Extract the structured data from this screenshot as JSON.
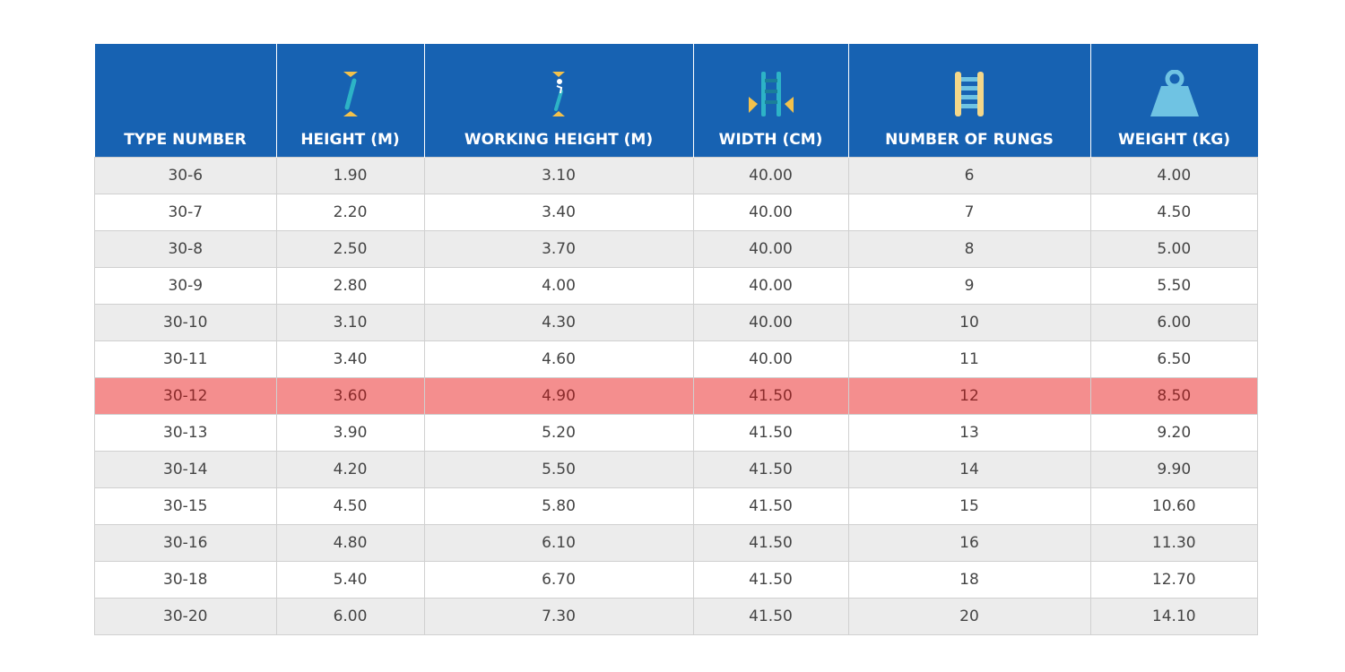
{
  "table": {
    "headers": [
      "TYPE NUMBER",
      "HEIGHT (M)",
      "WORKING HEIGHT (M)",
      "WIDTH (CM)",
      "NUMBER OF RUNGS",
      "WEIGHT (KG)"
    ],
    "rows": [
      [
        "30-6",
        "1.90",
        "3.10",
        "40.00",
        "6",
        "4.00"
      ],
      [
        "30-7",
        "2.20",
        "3.40",
        "40.00",
        "7",
        "4.50"
      ],
      [
        "30-8",
        "2.50",
        "3.70",
        "40.00",
        "8",
        "5.00"
      ],
      [
        "30-9",
        "2.80",
        "4.00",
        "40.00",
        "9",
        "5.50"
      ],
      [
        "30-10",
        "3.10",
        "4.30",
        "40.00",
        "10",
        "6.00"
      ],
      [
        "30-11",
        "3.40",
        "4.60",
        "40.00",
        "11",
        "6.50"
      ],
      [
        "30-12",
        "3.60",
        "4.90",
        "41.50",
        "12",
        "8.50"
      ],
      [
        "30-13",
        "3.90",
        "5.20",
        "41.50",
        "13",
        "9.20"
      ],
      [
        "30-14",
        "4.20",
        "5.50",
        "41.50",
        "14",
        "9.90"
      ],
      [
        "30-15",
        "4.50",
        "5.80",
        "41.50",
        "15",
        "10.60"
      ],
      [
        "30-16",
        "4.80",
        "6.10",
        "41.50",
        "16",
        "11.30"
      ],
      [
        "30-18",
        "5.40",
        "6.70",
        "41.50",
        "18",
        "12.70"
      ],
      [
        "30-20",
        "6.00",
        "7.30",
        "41.50",
        "20",
        "14.10"
      ]
    ]
  }
}
